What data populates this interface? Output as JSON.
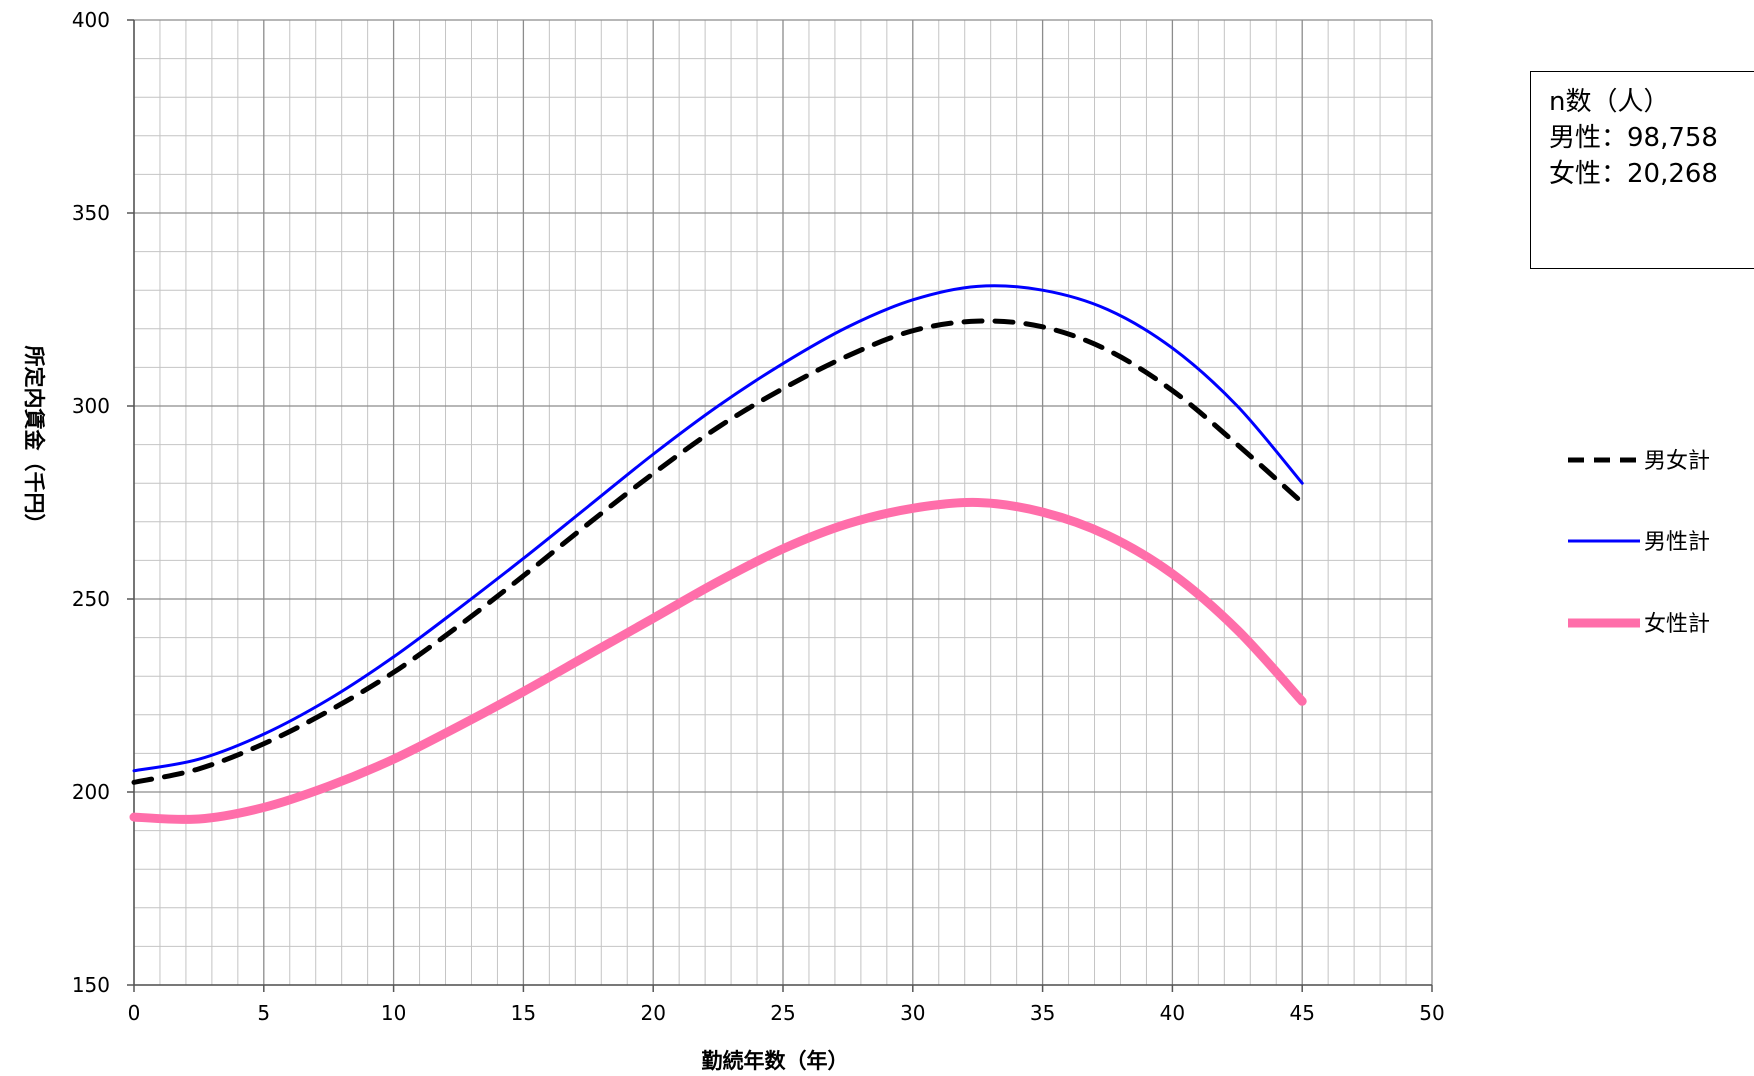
{
  "info_box": {
    "title": "n数（人）",
    "lines": [
      "男性：98,758",
      "女性：20,268"
    ]
  },
  "legend": [
    {
      "label": "男女計"
    },
    {
      "label": "男性計"
    },
    {
      "label": "女性計"
    }
  ],
  "chart_data": {
    "type": "line",
    "xlabel": "勤続年数（年）",
    "ylabel": "所定内賃金（千円）",
    "xlim": [
      0,
      50
    ],
    "ylim": [
      150,
      400
    ],
    "xticks": [
      0,
      5,
      10,
      15,
      20,
      25,
      30,
      35,
      40,
      45,
      50
    ],
    "yticks": [
      150,
      200,
      250,
      300,
      350,
      400
    ],
    "grid": true,
    "legend_position": "right",
    "x": [
      0,
      2.5,
      5,
      7.5,
      10,
      12.5,
      15,
      17.5,
      20,
      22.5,
      25,
      27.5,
      30,
      32.5,
      35,
      37.5,
      40,
      42.5,
      45
    ],
    "series": [
      {
        "name": "男女計",
        "color": "#000000",
        "style": "dashed",
        "values": [
          202.5,
          206,
          212.5,
          221,
          231,
          243,
          256,
          269.5,
          282.5,
          294.5,
          304.5,
          313,
          319.5,
          322,
          320.5,
          314.5,
          304,
          290,
          275
        ]
      },
      {
        "name": "男性計",
        "color": "#0000ff",
        "style": "solid",
        "values": [
          205.5,
          208.5,
          215,
          224,
          235,
          247.5,
          260.5,
          274,
          287.5,
          300,
          311,
          320.5,
          327.5,
          331,
          330,
          325,
          315,
          300,
          280
        ]
      },
      {
        "name": "女性計",
        "color": "#ff6eaa",
        "style": "thick",
        "values": [
          193.5,
          193,
          196,
          201.5,
          208.5,
          217,
          226,
          235.5,
          245,
          254.5,
          263,
          269.5,
          273.5,
          275,
          272.5,
          266.5,
          256.5,
          242,
          223.5
        ]
      }
    ]
  }
}
